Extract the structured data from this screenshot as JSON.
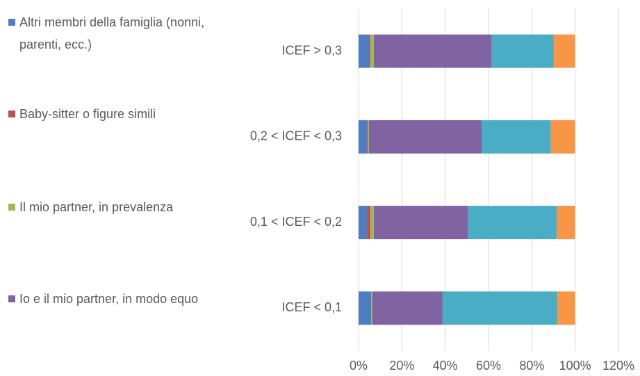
{
  "chart_data": {
    "type": "stacked_barh",
    "categories": [
      "ICEF > 0,3",
      "0,2 < ICEF < 0,3",
      "0,1 < ICEF < 0,2",
      "ICEF < 0,1"
    ],
    "series": [
      {
        "name": "Altri membri della famiglia (nonni, parenti, ecc.)",
        "color": "#4e7dc2",
        "values": [
          5,
          4,
          4,
          5.8
        ]
      },
      {
        "name": "Baby-sitter o figure simili",
        "color": "#c0504d",
        "values": [
          0.5,
          0.3,
          1.5,
          0
        ]
      },
      {
        "name": "Il mio partner, in prevalenza",
        "color": "#9bbb59",
        "values": [
          1.5,
          0.5,
          1.5,
          0.5
        ]
      },
      {
        "name": "Io e il mio partner, in modo equo",
        "color": "#8064a2",
        "values": [
          54.5,
          52,
          43.5,
          32.5
        ]
      },
      {
        "color": "#4bacc6",
        "values": [
          28.5,
          32,
          41,
          53
        ]
      },
      {
        "color": "#f79646",
        "values": [
          10,
          11.2,
          8.5,
          8.2
        ]
      }
    ],
    "xlim": [
      0,
      120
    ],
    "xticks": [
      {
        "value": 0,
        "label": "0%"
      },
      {
        "value": 20,
        "label": "20%"
      },
      {
        "value": 40,
        "label": "40%"
      },
      {
        "value": 60,
        "label": "60%"
      },
      {
        "value": 80,
        "label": "80%"
      },
      {
        "value": 100,
        "label": "100%"
      },
      {
        "value": 120,
        "label": "120%"
      }
    ],
    "grid": true,
    "legend": "left"
  }
}
